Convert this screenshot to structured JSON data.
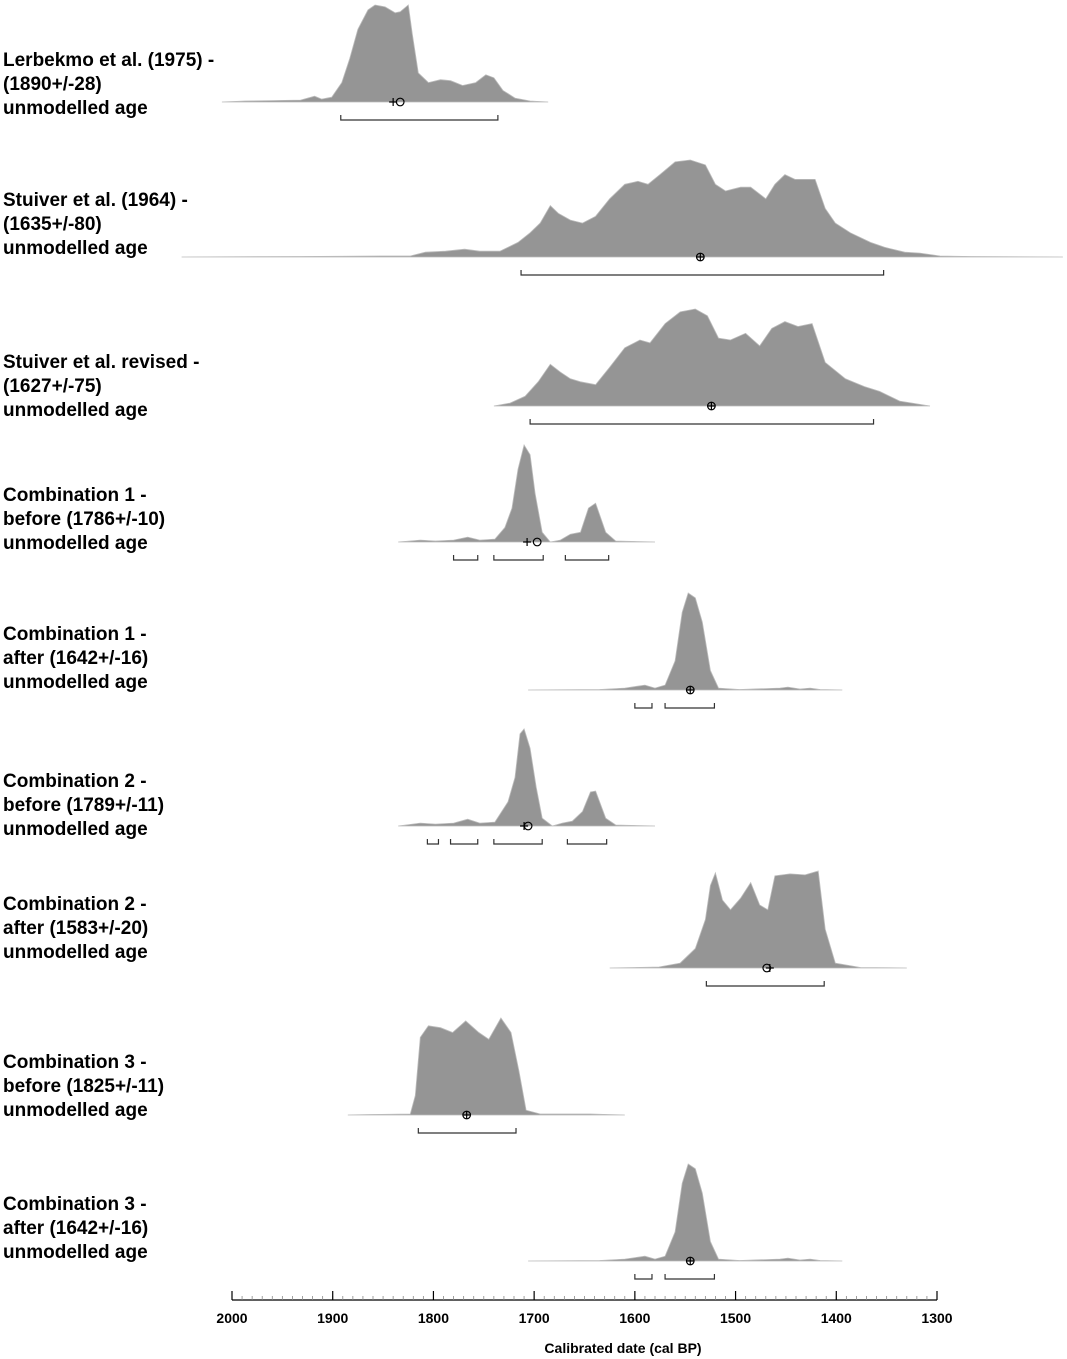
{
  "chart_data": {
    "type": "density",
    "xlabel": "Calibrated date (cal BP)",
    "xlim": [
      2000,
      1300
    ],
    "xticks": [
      2000,
      1900,
      1800,
      1700,
      1600,
      1500,
      1400,
      1300
    ],
    "xminor_step": 10,
    "color": "#959595",
    "plots": [
      {
        "label": [
          "Lerbekmo et al. (1975) -",
          "(1890+/-28)",
          "unmodelled age"
        ],
        "x": [
          2010,
          1987,
          1932,
          1918,
          1911,
          1901,
          1891,
          1883,
          1875,
          1865,
          1858,
          1848,
          1838,
          1833,
          1825,
          1821,
          1815,
          1805,
          1793,
          1783,
          1771,
          1758,
          1748,
          1740,
          1731,
          1719,
          1704,
          1686
        ],
        "density": [
          0,
          0.01,
          0.02,
          0.06,
          0.03,
          0.05,
          0.2,
          0.45,
          0.75,
          0.95,
          1,
          0.98,
          0.92,
          0.93,
          1,
          0.7,
          0.3,
          0.2,
          0.23,
          0.22,
          0.17,
          0.2,
          0.28,
          0.25,
          0.12,
          0.04,
          0.01,
          0
        ],
        "mean": 1833,
        "median": 1840,
        "ranges": [
          [
            1892,
            1736
          ]
        ]
      },
      {
        "label": [
          "Stuiver et al. (1964) -",
          "(1635+/-80)",
          "unmodelled age"
        ],
        "x": [
          2050,
          1932,
          1853,
          1823,
          1808,
          1788,
          1769,
          1754,
          1734,
          1716,
          1704,
          1694,
          1684,
          1676,
          1664,
          1652,
          1639,
          1625,
          1610,
          1597,
          1587,
          1575,
          1560,
          1545,
          1530,
          1520,
          1510,
          1495,
          1485,
          1470,
          1461,
          1451,
          1441,
          1431,
          1421,
          1411,
          1401,
          1386,
          1366,
          1352,
          1332,
          1317,
          1297,
          1267,
          1175
        ],
        "density": [
          0,
          0.005,
          0.01,
          0.01,
          0.05,
          0.06,
          0.08,
          0.06,
          0.06,
          0.15,
          0.25,
          0.35,
          0.53,
          0.45,
          0.38,
          0.35,
          0.42,
          0.6,
          0.75,
          0.78,
          0.75,
          0.85,
          0.98,
          1,
          0.95,
          0.75,
          0.68,
          0.72,
          0.72,
          0.6,
          0.75,
          0.85,
          0.8,
          0.8,
          0.8,
          0.5,
          0.35,
          0.25,
          0.15,
          0.1,
          0.05,
          0.04,
          0.01,
          0.005,
          0
        ],
        "mean": 1535,
        "median": 1535,
        "ranges": [
          [
            1713,
            1353
          ]
        ]
      },
      {
        "label": [
          "Stuiver et al. revised -",
          "(1627+/-75)",
          "unmodelled age"
        ],
        "x": [
          1740,
          1724,
          1709,
          1696,
          1684,
          1674,
          1664,
          1654,
          1639,
          1625,
          1610,
          1595,
          1585,
          1570,
          1555,
          1540,
          1528,
          1517,
          1505,
          1490,
          1476,
          1464,
          1451,
          1438,
          1424,
          1411,
          1391,
          1372,
          1357,
          1337,
          1307
        ],
        "density": [
          0,
          0.03,
          0.1,
          0.25,
          0.43,
          0.35,
          0.28,
          0.25,
          0.22,
          0.4,
          0.6,
          0.68,
          0.65,
          0.85,
          0.97,
          1,
          0.93,
          0.7,
          0.68,
          0.75,
          0.62,
          0.8,
          0.87,
          0.82,
          0.85,
          0.45,
          0.28,
          0.2,
          0.15,
          0.05,
          0
        ],
        "mean": 1524,
        "median": 1524,
        "ranges": [
          [
            1704,
            1363
          ]
        ]
      },
      {
        "label": [
          "Combination 1 -",
          "before (1786+/-10)",
          "unmodelled age"
        ],
        "x": [
          1835,
          1813,
          1798,
          1780,
          1766,
          1754,
          1739,
          1729,
          1722,
          1716,
          1710,
          1704,
          1699,
          1692,
          1684,
          1674,
          1664,
          1654,
          1646,
          1639,
          1629,
          1619,
          1580
        ],
        "density": [
          0,
          0.02,
          0.01,
          0.02,
          0.05,
          0.02,
          0.03,
          0.15,
          0.35,
          0.75,
          1,
          0.9,
          0.5,
          0.1,
          0,
          0.02,
          0.08,
          0.1,
          0.35,
          0.4,
          0.1,
          0.01,
          0
        ],
        "mean": 1697,
        "median": 1707,
        "ranges": [
          [
            1780,
            1756
          ],
          [
            1740,
            1691
          ],
          [
            1669,
            1626
          ]
        ]
      },
      {
        "label": [
          "Combination 1 -",
          "after (1642+/-16)",
          "unmodelled age"
        ],
        "x": [
          1706,
          1635,
          1610,
          1590,
          1580,
          1570,
          1560,
          1553,
          1547,
          1540,
          1533,
          1525,
          1517,
          1496,
          1456,
          1448,
          1436,
          1426,
          1416,
          1394
        ],
        "density": [
          0,
          0.005,
          0.02,
          0.05,
          0.02,
          0.05,
          0.3,
          0.8,
          1,
          0.95,
          0.7,
          0.2,
          0.02,
          0.005,
          0.02,
          0.03,
          0.01,
          0.02,
          0.005,
          0
        ],
        "mean": 1545,
        "median": 1545,
        "ranges": [
          [
            1600,
            1583
          ],
          [
            1570,
            1521
          ]
        ]
      },
      {
        "label": [
          "Combination 2 -",
          "before (1789+/-11)",
          "unmodelled age"
        ],
        "x": [
          1835,
          1813,
          1798,
          1780,
          1766,
          1754,
          1739,
          1726,
          1719,
          1714,
          1710,
          1704,
          1698,
          1692,
          1682,
          1672,
          1662,
          1652,
          1644,
          1639,
          1629,
          1619,
          1580
        ],
        "density": [
          0,
          0.03,
          0.02,
          0.03,
          0.07,
          0.03,
          0.04,
          0.25,
          0.5,
          0.95,
          1,
          0.8,
          0.4,
          0.08,
          0,
          0.03,
          0.05,
          0.15,
          0.35,
          0.36,
          0.08,
          0.01,
          0
        ],
        "mean": 1706,
        "median": 1710,
        "ranges": [
          [
            1806,
            1795
          ],
          [
            1783,
            1756
          ],
          [
            1740,
            1692
          ],
          [
            1667,
            1628
          ]
        ]
      },
      {
        "label": [
          "Combination 2 -",
          "after (1583+/-20)",
          "unmodelled age"
        ],
        "x": [
          1625,
          1576,
          1555,
          1540,
          1530,
          1525,
          1520,
          1513,
          1505,
          1495,
          1485,
          1476,
          1468,
          1461,
          1446,
          1431,
          1418,
          1411,
          1401,
          1376,
          1330
        ],
        "density": [
          0,
          0.01,
          0.05,
          0.2,
          0.5,
          0.85,
          0.98,
          0.7,
          0.6,
          0.72,
          0.88,
          0.65,
          0.6,
          0.95,
          0.97,
          0.96,
          1,
          0.4,
          0.05,
          0.005,
          0
        ],
        "mean": 1469,
        "median": 1466,
        "ranges": [
          [
            1529,
            1412
          ]
        ]
      },
      {
        "label": [
          "Combination 3 -",
          "before (1825+/-11)",
          "unmodelled age"
        ],
        "x": [
          1885,
          1863,
          1823,
          1818,
          1813,
          1805,
          1793,
          1781,
          1768,
          1755,
          1745,
          1733,
          1723,
          1715,
          1708,
          1694,
          1644,
          1610
        ],
        "density": [
          0,
          0.005,
          0.01,
          0.2,
          0.8,
          0.92,
          0.9,
          0.85,
          0.97,
          0.85,
          0.78,
          1,
          0.85,
          0.45,
          0.05,
          0.01,
          0.01,
          0
        ],
        "mean": 1767,
        "median": 1767,
        "ranges": [
          [
            1815,
            1718
          ]
        ]
      },
      {
        "label": [
          "Combination 3 -",
          "after (1642+/-16)",
          "unmodelled age"
        ],
        "x": [
          1706,
          1635,
          1610,
          1590,
          1580,
          1570,
          1560,
          1553,
          1547,
          1540,
          1533,
          1525,
          1517,
          1496,
          1456,
          1448,
          1436,
          1426,
          1416,
          1394
        ],
        "density": [
          0,
          0.005,
          0.02,
          0.05,
          0.02,
          0.05,
          0.3,
          0.8,
          1,
          0.95,
          0.7,
          0.2,
          0.02,
          0.005,
          0.02,
          0.03,
          0.01,
          0.02,
          0.005,
          0
        ],
        "mean": 1545,
        "median": 1545,
        "ranges": [
          [
            1600,
            1583
          ],
          [
            1570,
            1521
          ]
        ]
      }
    ]
  }
}
